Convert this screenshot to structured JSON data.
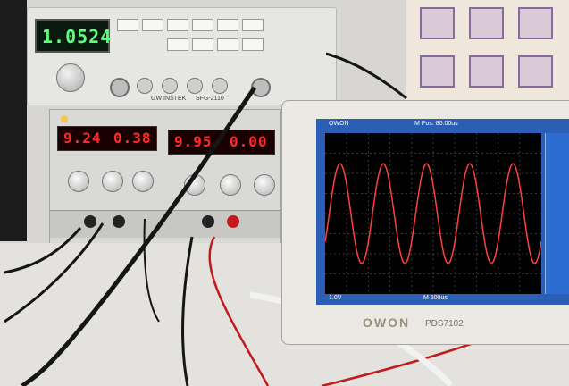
{
  "function_generator": {
    "display_value": "1.0524",
    "brand": "GW INSTEK",
    "model": "SFG-2110",
    "colors": {
      "display": "#5cff7a",
      "body": "#e6e6e3"
    }
  },
  "power_supply": {
    "ch1_voltage": "9.24",
    "ch1_current": "0.38",
    "ch2_voltage": "9.95",
    "ch2_current": "0.00",
    "colors": {
      "display": "#ff2b2b",
      "body": "#d9d9d6"
    }
  },
  "oscilloscope": {
    "brand": "OWON",
    "model": "PDS7102",
    "screen_header_left": "OWON",
    "screen_header_mid": "M Pos: 80.00us",
    "screen_footer_left": "1.0V",
    "screen_footer_mid": "M 500us",
    "trace": {
      "type": "sine",
      "cycles": 5,
      "color": "#ff4040"
    },
    "colors": {
      "screen": "#000000",
      "frame": "#2b5fb6",
      "sidebar": "#2c6bd0"
    }
  }
}
